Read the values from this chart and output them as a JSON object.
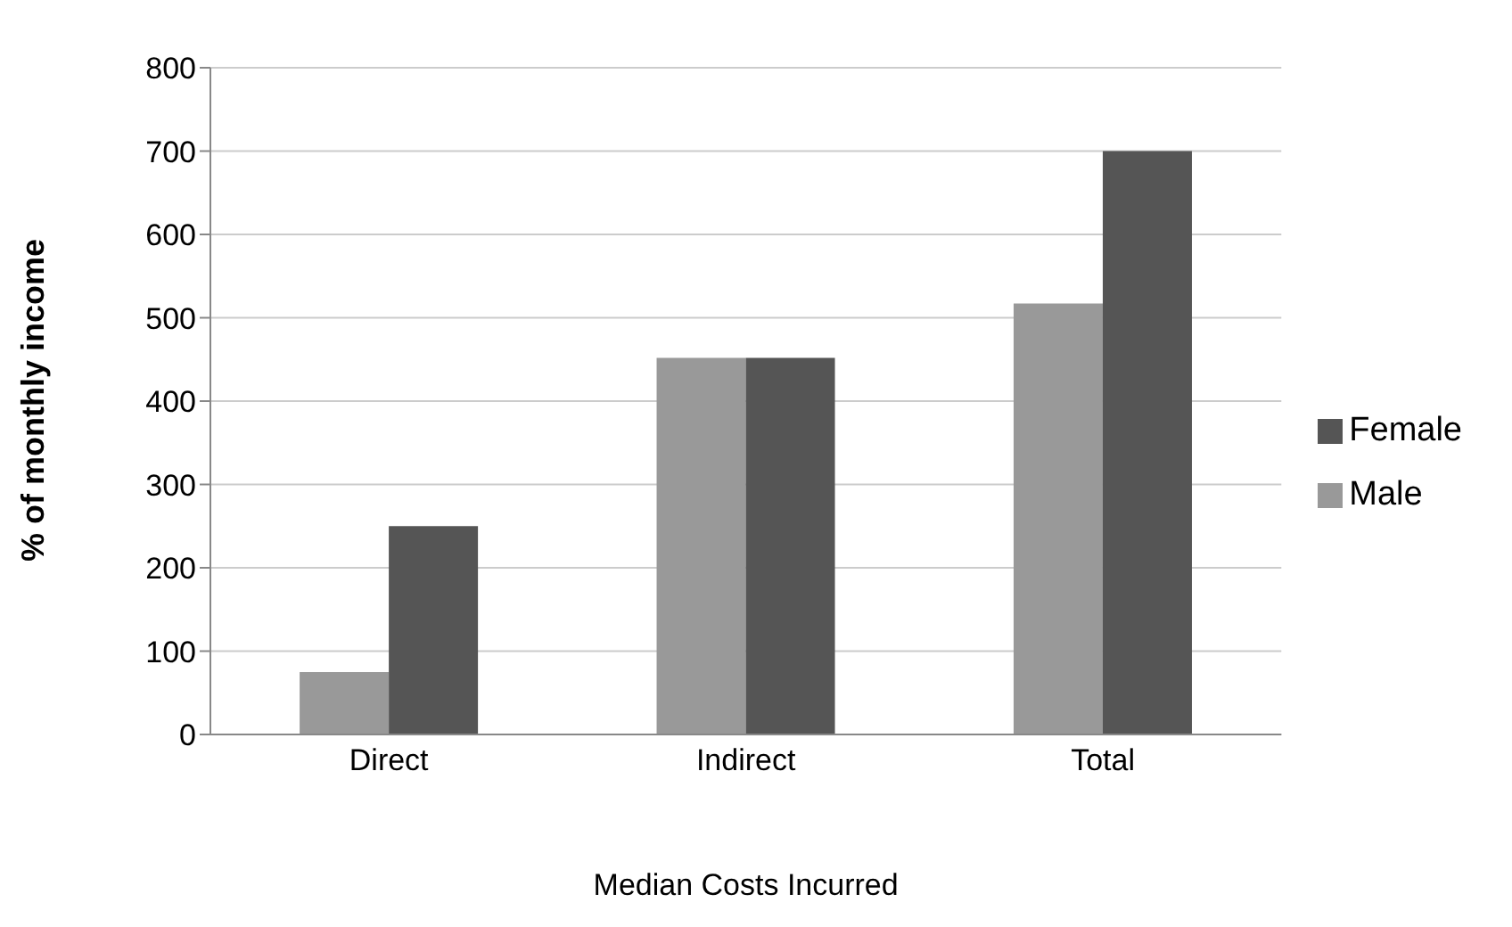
{
  "chart_data": {
    "type": "bar",
    "xlabel": "Median Costs Incurred",
    "ylabel": "% of monthly income",
    "categories": [
      "Direct",
      "Indirect",
      "Total"
    ],
    "series": [
      {
        "name": "Male",
        "color": "#999999",
        "values": [
          75,
          452,
          517
        ]
      },
      {
        "name": "Female",
        "color": "#555555",
        "values": [
          250,
          452,
          700
        ]
      }
    ],
    "ylim": [
      0,
      800
    ],
    "yticks": [
      0,
      100,
      200,
      300,
      400,
      500,
      600,
      700,
      800
    ],
    "grid": "y",
    "legend": "right"
  }
}
